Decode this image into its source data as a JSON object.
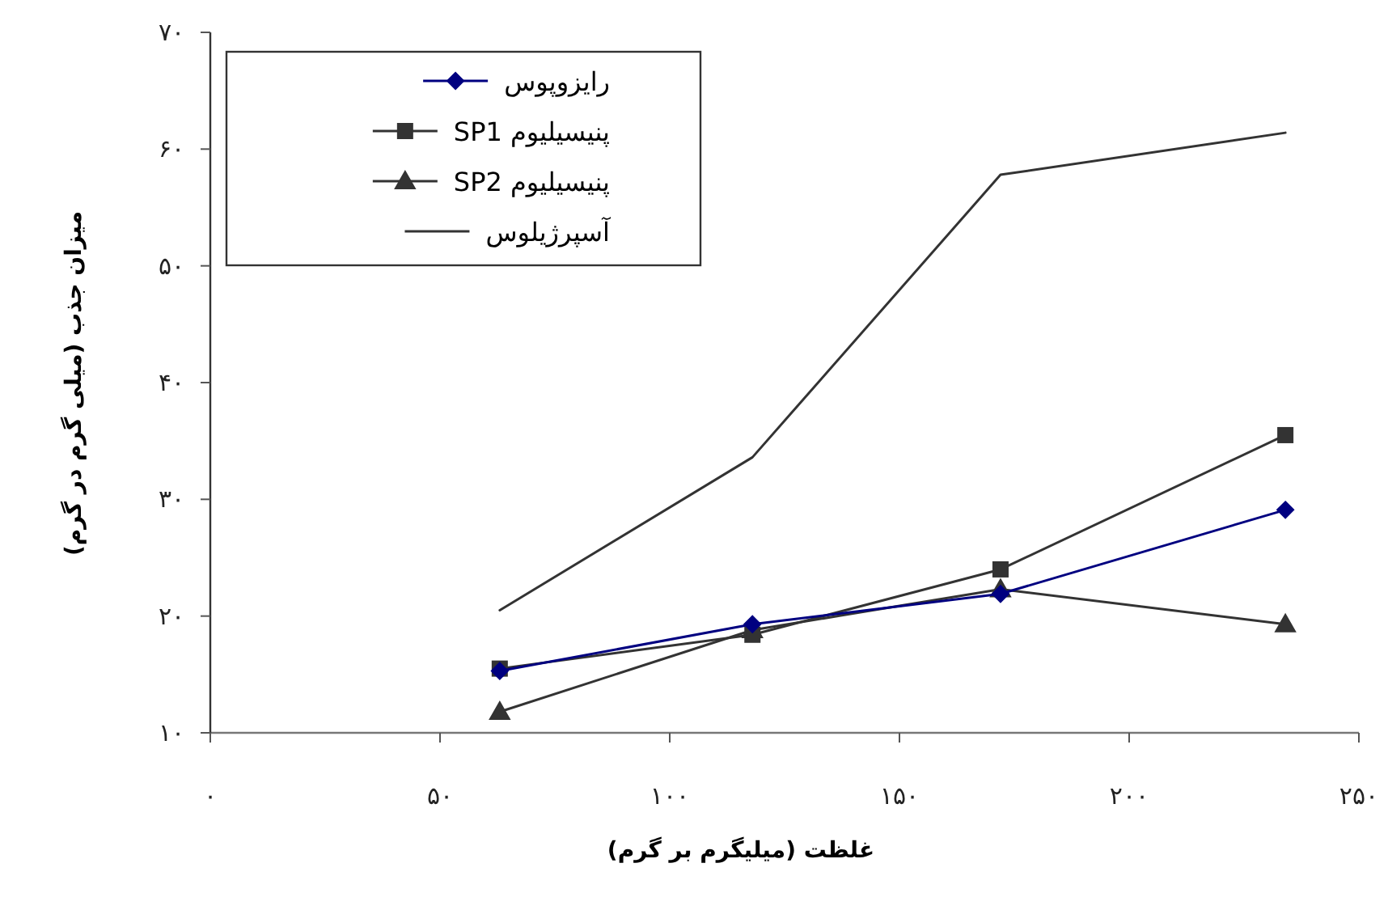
{
  "chart_data": {
    "type": "line",
    "xlabel": "غلظت (میلیگرم بر گرم)",
    "ylabel": "میزان جذب (میلی گرم در گرم)",
    "xlim": [
      0,
      250
    ],
    "ylim": [
      10,
      70
    ],
    "xticks": [
      {
        "value": 0,
        "label": "۰"
      },
      {
        "value": 50,
        "label": "۵۰"
      },
      {
        "value": 100,
        "label": "۱۰۰"
      },
      {
        "value": 150,
        "label": "۱۵۰"
      },
      {
        "value": 200,
        "label": "۲۰۰"
      },
      {
        "value": 250,
        "label": "۲۵۰"
      }
    ],
    "yticks": [
      {
        "value": 10,
        "label": "۱۰"
      },
      {
        "value": 20,
        "label": "۲۰"
      },
      {
        "value": 30,
        "label": "۳۰"
      },
      {
        "value": 40,
        "label": "۴۰"
      },
      {
        "value": 50,
        "label": "۵۰"
      },
      {
        "value": 60,
        "label": "۶۰"
      },
      {
        "value": 70,
        "label": "۷۰"
      }
    ],
    "x": [
      63,
      118,
      172,
      234
    ],
    "legend": "top left",
    "series": [
      {
        "name": "رایزوپوس",
        "color": "#000080",
        "marker": "diamond",
        "values": [
          15.3,
          19.3,
          21.9,
          29.1
        ]
      },
      {
        "name": "پنیسیلیوم SP1",
        "color": "#333333",
        "marker": "square",
        "values": [
          15.5,
          18.4,
          24.0,
          35.5
        ]
      },
      {
        "name": "پنیسیلیوم SP2",
        "color": "#333333",
        "marker": "triangle",
        "values": [
          11.8,
          18.8,
          22.3,
          19.3
        ]
      },
      {
        "name": "آسپرژیلوس",
        "color": "#333333",
        "marker": "none",
        "values": [
          20.5,
          33.6,
          57.8,
          61.4
        ]
      }
    ]
  }
}
